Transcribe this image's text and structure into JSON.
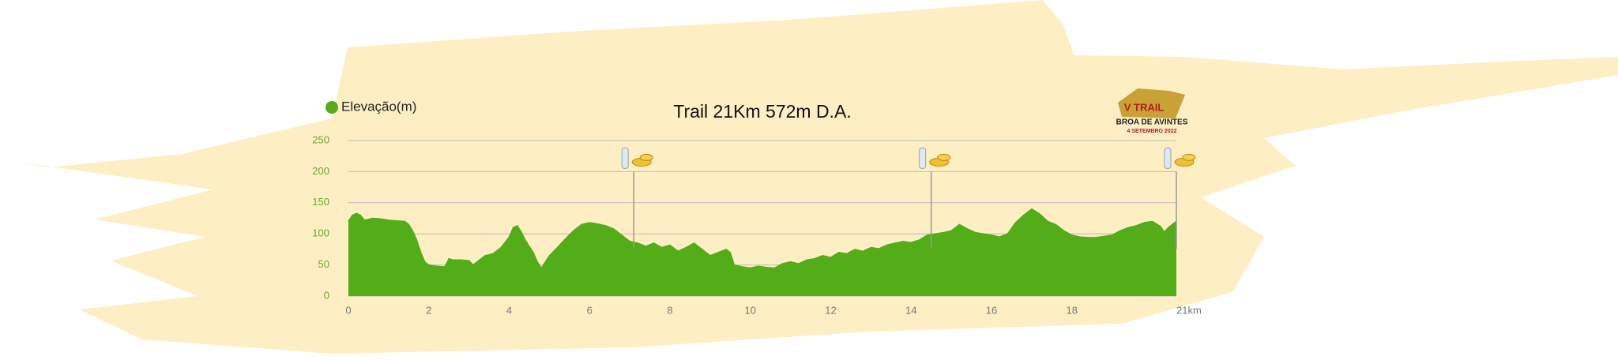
{
  "chart_data": {
    "type": "area",
    "title": "Trail 21Km 572m D.A.",
    "logo": {
      "line1": "V TRAIL",
      "line2": "BROA DE AVINTES",
      "line3": "4 SETEMBRO 2022"
    },
    "x": [
      0,
      0.1,
      0.2,
      0.3,
      0.4,
      0.6,
      0.8,
      1.0,
      1.2,
      1.4,
      1.5,
      1.6,
      1.7,
      1.8,
      1.9,
      2.0,
      2.2,
      2.4,
      2.5,
      2.6,
      2.8,
      3.0,
      3.1,
      3.2,
      3.4,
      3.6,
      3.8,
      4.0,
      4.1,
      4.2,
      4.3,
      4.4,
      4.5,
      4.6,
      4.7,
      4.8,
      4.9,
      5.0,
      5.2,
      5.4,
      5.6,
      5.8,
      6.0,
      6.2,
      6.4,
      6.6,
      6.8,
      7.0,
      7.2,
      7.4,
      7.6,
      7.8,
      8.0,
      8.2,
      8.4,
      8.6,
      8.8,
      9.0,
      9.2,
      9.4,
      9.5,
      9.6,
      9.8,
      10.0,
      10.2,
      10.4,
      10.6,
      10.8,
      11.0,
      11.2,
      11.4,
      11.6,
      11.8,
      12.0,
      12.2,
      12.4,
      12.6,
      12.8,
      13.0,
      13.2,
      13.4,
      13.6,
      13.8,
      14.0,
      14.2,
      14.4,
      14.6,
      14.8,
      15.0,
      15.2,
      15.4,
      15.6,
      15.8,
      16.0,
      16.2,
      16.4,
      16.6,
      16.8,
      17.0,
      17.2,
      17.4,
      17.6,
      17.8,
      18.0,
      18.2,
      18.4,
      18.6,
      18.8,
      19.0,
      19.2,
      19.4,
      19.6,
      19.8,
      20.0,
      20.2,
      20.3,
      20.4,
      20.6
    ],
    "series": [
      {
        "name": "Elevação(m)",
        "color": "#52ad19",
        "values": [
          120,
          130,
          133,
          130,
          122,
          125,
          124,
          122,
          121,
          120,
          115,
          105,
          90,
          70,
          55,
          50,
          48,
          47,
          60,
          58,
          58,
          57,
          50,
          55,
          65,
          68,
          78,
          95,
          110,
          113,
          103,
          90,
          80,
          70,
          55,
          45,
          55,
          65,
          78,
          92,
          105,
          115,
          118,
          116,
          113,
          108,
          98,
          88,
          85,
          80,
          85,
          78,
          82,
          72,
          78,
          85,
          75,
          65,
          70,
          75,
          70,
          50,
          47,
          45,
          48,
          46,
          45,
          52,
          55,
          52,
          58,
          60,
          65,
          62,
          70,
          68,
          75,
          72,
          78,
          76,
          82,
          85,
          88,
          86,
          90,
          98,
          100,
          102,
          105,
          115,
          108,
          102,
          100,
          98,
          95,
          100,
          118,
          130,
          140,
          132,
          120,
          115,
          105,
          98,
          95,
          94,
          94,
          96,
          98,
          105,
          110,
          113,
          118,
          120,
          112,
          103,
          110,
          120
        ]
      }
    ],
    "aid_stations": [
      7.1,
      14.5,
      20.6
    ],
    "xlim": [
      0,
      20.6
    ],
    "xticks": [
      0,
      2,
      4,
      6,
      8,
      10,
      12,
      14,
      16,
      18,
      {
        "value": 20.6,
        "label": "21km"
      }
    ],
    "ylim": [
      0,
      250
    ],
    "yticks": [
      0,
      50,
      100,
      150,
      200,
      250
    ],
    "grid": true,
    "legend": "top-left"
  }
}
